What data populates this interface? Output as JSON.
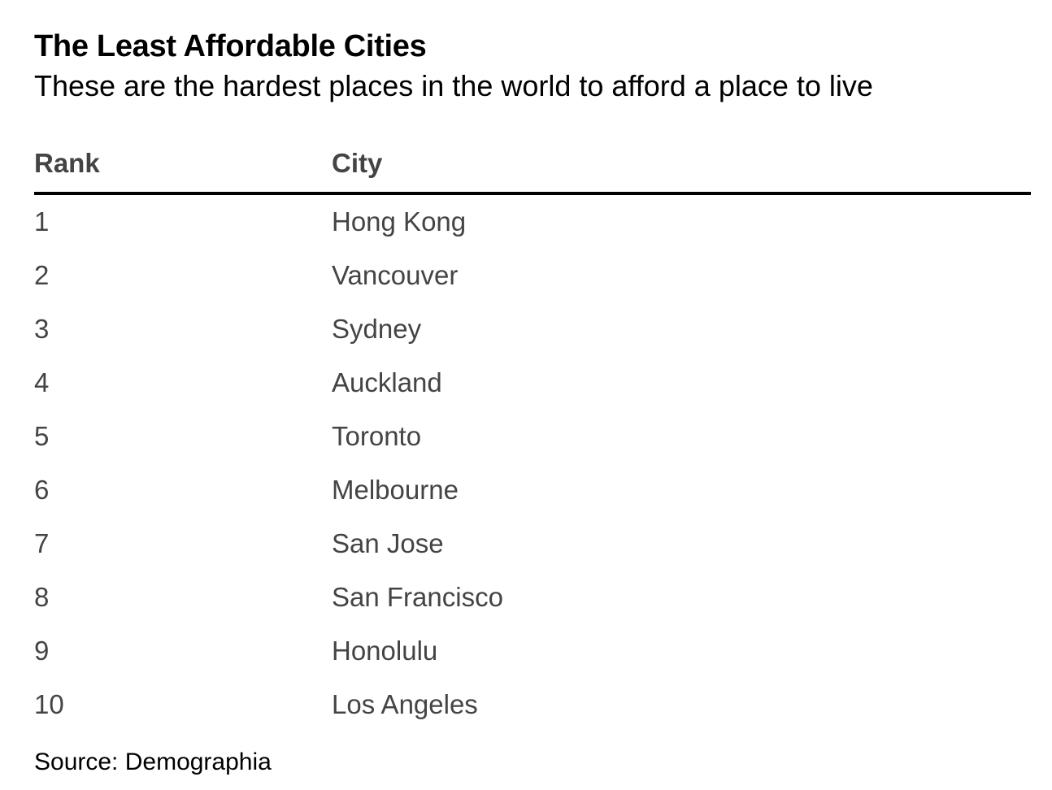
{
  "title": "The Least Affordable Cities",
  "subtitle": "These are the hardest places in the world to afford a place to live",
  "source": "Source: Demographia",
  "chart_data": {
    "type": "table",
    "columns": [
      "Rank",
      "City"
    ],
    "rows": [
      {
        "rank": "1",
        "city": "Hong Kong"
      },
      {
        "rank": "2",
        "city": "Vancouver"
      },
      {
        "rank": "3",
        "city": "Sydney"
      },
      {
        "rank": "4",
        "city": "Auckland"
      },
      {
        "rank": "5",
        "city": "Toronto"
      },
      {
        "rank": "6",
        "city": "Melbourne"
      },
      {
        "rank": "7",
        "city": "San Jose"
      },
      {
        "rank": "8",
        "city": "San Francisco"
      },
      {
        "rank": "9",
        "city": "Honolulu"
      },
      {
        "rank": "10",
        "city": "Los Angeles"
      }
    ]
  }
}
